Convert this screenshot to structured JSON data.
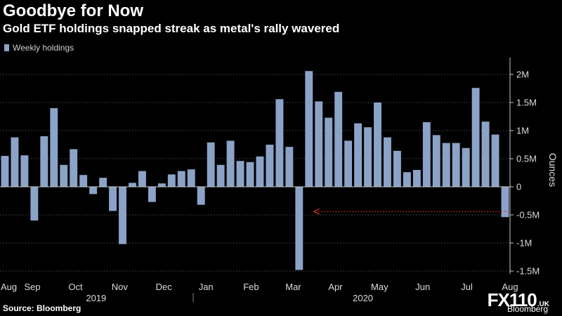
{
  "chart_data": {
    "type": "bar",
    "title": "Goodbye for Now",
    "subtitle": "Gold ETF holdings snapped streak as metal's rally wavered",
    "legend": "Weekly holdings",
    "ylabel": "Ounces",
    "ylim": [
      -1.55,
      2.2
    ],
    "yticks": [
      {
        "value": 2,
        "label": "2M"
      },
      {
        "value": 1.5,
        "label": "1.5M"
      },
      {
        "value": 1,
        "label": "1M"
      },
      {
        "value": 0.5,
        "label": "0.5M"
      },
      {
        "value": 0,
        "label": "0"
      },
      {
        "value": -0.5,
        "label": "-0.5M"
      },
      {
        "value": -1,
        "label": "-1M"
      },
      {
        "value": -1.5,
        "label": "-1.5M"
      }
    ],
    "values": [
      0.55,
      0.88,
      0.56,
      -0.6,
      0.9,
      1.4,
      0.39,
      0.67,
      0.21,
      -0.13,
      0.16,
      -0.43,
      -1.02,
      0.07,
      0.28,
      -0.27,
      0.06,
      0.22,
      0.28,
      0.31,
      -0.32,
      0.79,
      0.39,
      0.82,
      0.46,
      0.44,
      0.54,
      0.75,
      1.56,
      0.71,
      -1.48,
      2.06,
      1.52,
      1.23,
      1.69,
      0.82,
      1.13,
      1.06,
      1.5,
      0.88,
      0.64,
      0.26,
      0.3,
      1.15,
      0.92,
      0.78,
      0.78,
      0.69,
      1.76,
      1.16,
      0.93,
      -0.54
    ],
    "month_labels": [
      {
        "label": "Aug",
        "index": 0.4
      },
      {
        "label": "Sep",
        "index": 2.8
      },
      {
        "label": "Oct",
        "index": 7.2
      },
      {
        "label": "Nov",
        "index": 11.7
      },
      {
        "label": "Dec",
        "index": 16.2
      },
      {
        "label": "Jan",
        "index": 20.5
      },
      {
        "label": "Feb",
        "index": 25.1
      },
      {
        "label": "Mar",
        "index": 29.4
      },
      {
        "label": "Apr",
        "index": 33.7
      },
      {
        "label": "May",
        "index": 38.2
      },
      {
        "label": "Jun",
        "index": 42.6
      },
      {
        "label": "Jul",
        "index": 47.1
      },
      {
        "label": "Aug",
        "index": 51.5
      }
    ],
    "year_labels": [
      {
        "label": "2019",
        "index": 9.3
      },
      {
        "label": "2020",
        "index": 36.5
      }
    ],
    "annotation": {
      "type": "dashed-arrow",
      "from_index": 51.3,
      "to_index": 31.5,
      "value": -0.44,
      "color": "#e03030"
    },
    "colors": {
      "bar": "#8ba3c7",
      "grid": "#4a4a4a",
      "zero": "#c8c8c8",
      "axis_text": "#dcdcdc"
    }
  },
  "footer": {
    "source": "Source: Bloomberg",
    "watermark_logo": "FX110",
    "watermark_suffix": ".UK",
    "bloomberg": "Bloomberg"
  }
}
